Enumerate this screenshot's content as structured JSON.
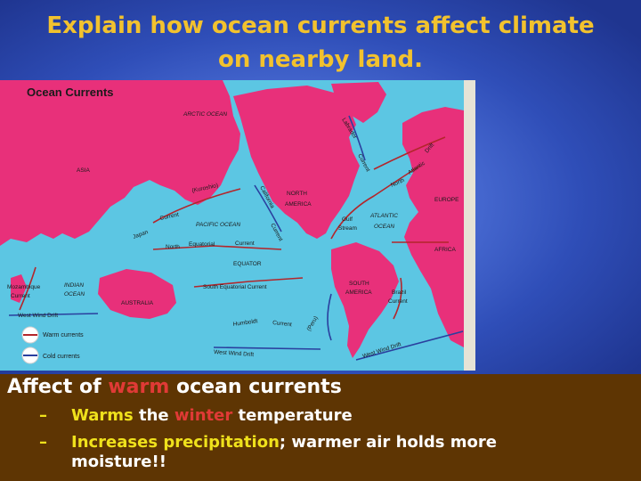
{
  "slide": {
    "title_line1": "Explain how ocean currents affect climate",
    "title_line2": "on nearby land."
  },
  "map": {
    "title": "Ocean Currents",
    "labels": {
      "arctic": "ARCTIC OCEAN",
      "asia": "ASIA",
      "north_america_1": "NORTH",
      "north_america_2": "AMERICA",
      "europe": "EUROPE",
      "africa": "AFRICA",
      "australia": "AUSTRALIA",
      "south_america_1": "SOUTH",
      "south_america_2": "AMERICA",
      "pacific": "PACIFIC OCEAN",
      "atlantic_1": "ATLANTIC",
      "atlantic_2": "OCEAN",
      "indian_1": "INDIAN",
      "indian_2": "OCEAN",
      "equator": "EQUATOR",
      "kuroshio": "(Kuroshio)",
      "current_1": "Current",
      "japan": "Japan",
      "california_1": "California",
      "california_2": "Current",
      "north_equatorial_1": "North",
      "north_equatorial_2": "Equatorial",
      "north_equatorial_3": "Current",
      "labrador_1": "Labrador",
      "labrador_2": "Current",
      "north_atlantic_1": "North",
      "north_atlantic_2": "Atlantic",
      "north_atlantic_3": "Drift",
      "gulf_1": "Gulf",
      "gulf_2": "Stream",
      "brazil_1": "Brazil",
      "brazil_2": "Current",
      "mozambique_1": "Mozambique",
      "mozambique_2": "Current",
      "south_equatorial": "South Equatorial Current",
      "west_wind_drift_1": "West Wind Drift",
      "west_wind_drift_2": "West Wind Drift",
      "west_wind_drift_3": "West Wind Drift",
      "humboldt_1": "Humboldt",
      "humboldt_2": "Current",
      "peru": "(Peru)"
    },
    "legend": {
      "warm": "Warm currents",
      "cold": "Cold currents"
    },
    "colors": {
      "land": "#e8307a",
      "ocean": "#5cc6e3",
      "warm": "#b3262b",
      "cold": "#2a3f9e"
    }
  },
  "content": {
    "heading_pre": "Affect of ",
    "heading_warm": "warm",
    "heading_post": " ocean currents",
    "bullet_dash": "–",
    "bullet1_a": "Warms",
    "bullet1_b": " the ",
    "bullet1_c": "winter",
    "bullet1_d": " temperature",
    "bullet2_a": "Increases precipitation",
    "bullet2_b": "; warmer air holds more",
    "bullet2_c": "moisture!!"
  }
}
